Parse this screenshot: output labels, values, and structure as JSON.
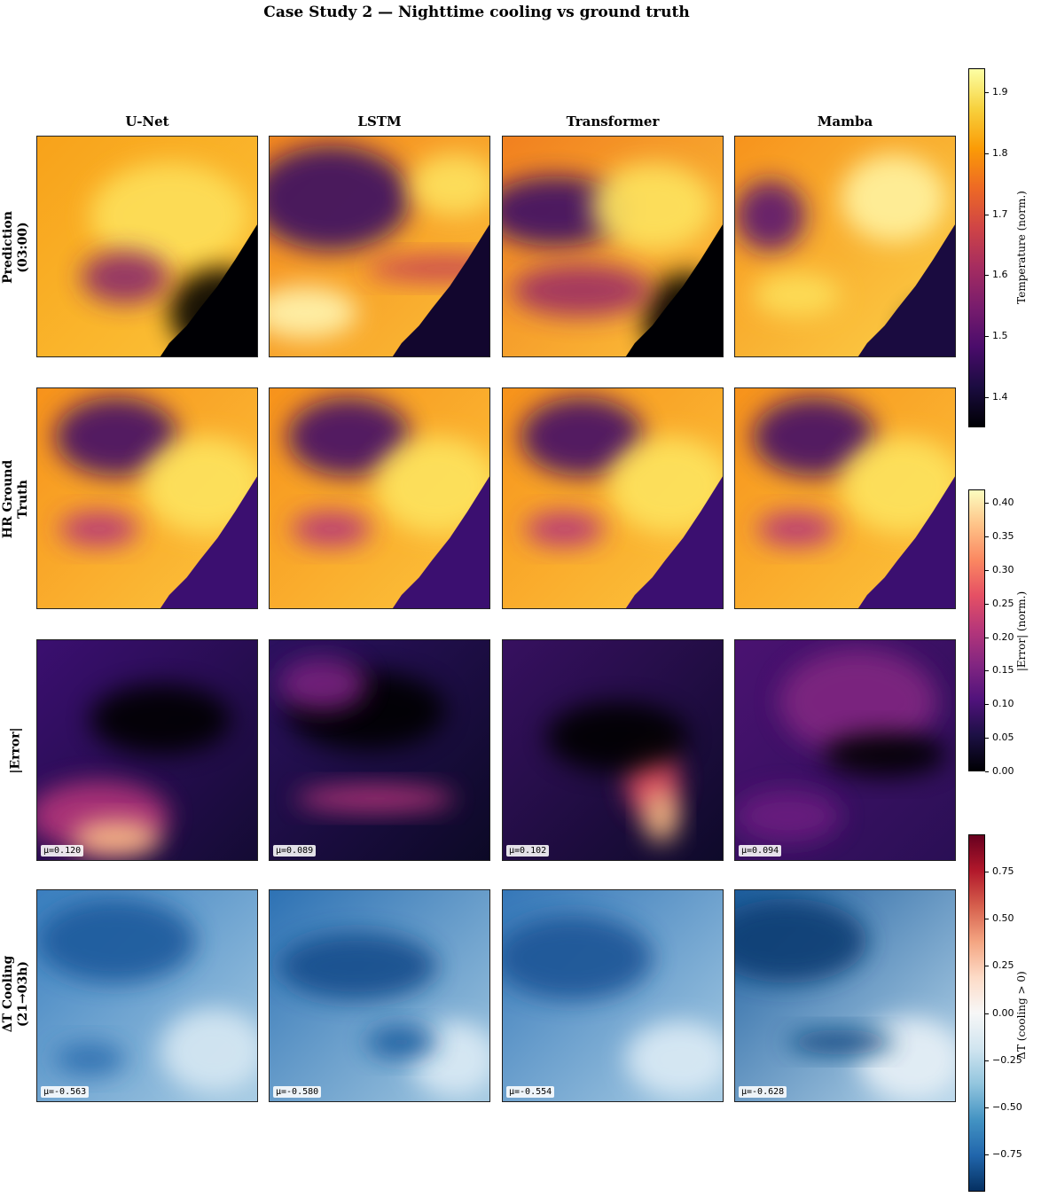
{
  "title": "Case Study 2 — Nighttime cooling vs ground truth",
  "columns": [
    "U-Net",
    "LSTM",
    "Transformer",
    "Mamba"
  ],
  "rows": [
    {
      "label_line1": "Prediction",
      "label_line2": "(03:00)",
      "colormap": "inferno"
    },
    {
      "label_line1": "HR Ground",
      "label_line2": "Truth",
      "colormap": "inferno"
    },
    {
      "label_line1": "|Error|",
      "label_line2": "",
      "colormap": "magma"
    },
    {
      "label_line1": "ΔT Cooling",
      "label_line2": "(21→03h)",
      "colormap": "RdBu_r"
    }
  ],
  "error_means": [
    "μ=0.120",
    "μ=0.089",
    "μ=0.102",
    "μ=0.094"
  ],
  "cooling_means": [
    "μ=-0.563",
    "μ=-0.580",
    "μ=-0.554",
    "μ=-0.628"
  ],
  "colorbars": {
    "temperature": {
      "label": "Temperature (norm.)",
      "range": [
        1.35,
        1.94
      ],
      "ticks": [
        "1.4",
        "1.5",
        "1.6",
        "1.7",
        "1.8",
        "1.9"
      ]
    },
    "error": {
      "label": "|Error| (norm.)",
      "range": [
        0.0,
        0.42
      ],
      "ticks": [
        "0.00",
        "0.05",
        "0.10",
        "0.15",
        "0.20",
        "0.25",
        "0.30",
        "0.35",
        "0.40"
      ]
    },
    "cooling": {
      "label": "ΔT (cooling > 0)",
      "range": [
        -0.95,
        0.95
      ],
      "ticks": [
        "−0.75",
        "−0.50",
        "−0.25",
        "0.00",
        "0.25",
        "0.50",
        "0.75"
      ]
    }
  },
  "chart_data": {
    "type": "heatmap",
    "title": "Case Study 2 — Nighttime cooling vs ground truth",
    "models": [
      "U-Net",
      "LSTM",
      "Transformer",
      "Mamba"
    ],
    "rows": [
      "Prediction (03:00)",
      "HR Ground Truth",
      "|Error|",
      "ΔT Cooling (21→03h)"
    ],
    "series": [
      {
        "name": "|Error|",
        "values": [
          0.12,
          0.089,
          0.102,
          0.094
        ]
      },
      {
        "name": "ΔT Cooling",
        "values": [
          -0.563,
          -0.58,
          -0.554,
          -0.628
        ]
      }
    ],
    "temperature_range": [
      1.35,
      1.94
    ],
    "error_range": [
      0.0,
      0.42
    ],
    "cooling_range": [
      -0.95,
      0.95
    ]
  }
}
